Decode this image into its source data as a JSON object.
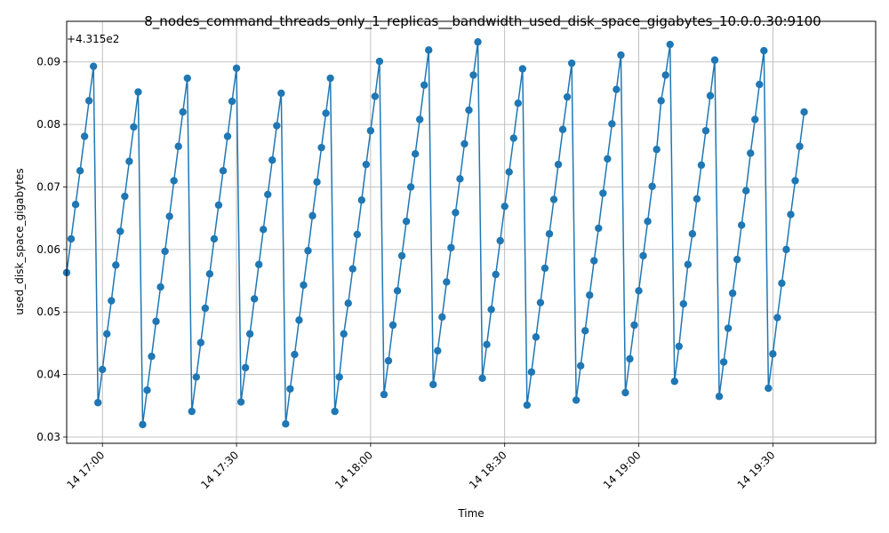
{
  "chart_data": {
    "type": "line",
    "title": "8_nodes_command_threads_only_1_replicas__bandwidth_used_disk_space_gigabytes_10.0.0.30:9100",
    "xlabel": "Time",
    "ylabel": "used_disk_space_gigabytes",
    "y_offset_label": "+4.315e2",
    "x_tick_labels": [
      "14 17:00",
      "14 17:30",
      "14 18:00",
      "14 18:30",
      "14 19:00",
      "14 19:30"
    ],
    "x_tick_minutes": [
      60,
      90,
      120,
      150,
      180,
      210
    ],
    "y_tick_labels": [
      "0.03",
      "0.04",
      "0.05",
      "0.06",
      "0.07",
      "0.08",
      "0.09"
    ],
    "y_tick_values": [
      0.03,
      0.04,
      0.05,
      0.06,
      0.07,
      0.08,
      0.09
    ],
    "xlim_minutes": [
      52,
      233
    ],
    "ylim_offset": [
      0.029,
      0.0965
    ],
    "grid": true,
    "line_color": "#1f77b4",
    "marker_color": "#1f77b4",
    "x_start_minute": 52,
    "x_step_minutes": 1,
    "values_offset": [
      0.0563,
      0.0617,
      0.0672,
      0.0726,
      0.0781,
      0.0838,
      0.0893,
      0.0355,
      0.0408,
      0.0465,
      0.0518,
      0.0575,
      0.0629,
      0.0685,
      0.0741,
      0.0796,
      0.0852,
      0.032,
      0.0375,
      0.0429,
      0.0485,
      0.054,
      0.0597,
      0.0653,
      0.071,
      0.0765,
      0.082,
      0.0874,
      0.0341,
      0.0396,
      0.0451,
      0.0506,
      0.0561,
      0.0617,
      0.0671,
      0.0726,
      0.0781,
      0.0837,
      0.089,
      0.0356,
      0.0411,
      0.0465,
      0.0521,
      0.0576,
      0.0632,
      0.0688,
      0.0743,
      0.0798,
      0.085,
      0.0321,
      0.0377,
      0.0432,
      0.0487,
      0.0543,
      0.0598,
      0.0654,
      0.0708,
      0.0763,
      0.0818,
      0.0874,
      0.0341,
      0.0396,
      0.0465,
      0.0514,
      0.0569,
      0.0624,
      0.0679,
      0.0736,
      0.079,
      0.0845,
      0.0901,
      0.0368,
      0.0422,
      0.0479,
      0.0534,
      0.059,
      0.0645,
      0.07,
      0.0753,
      0.0808,
      0.0863,
      0.0919,
      0.0384,
      0.0438,
      0.0492,
      0.0548,
      0.0603,
      0.0659,
      0.0713,
      0.0769,
      0.0823,
      0.0879,
      0.0932,
      0.0394,
      0.0448,
      0.0504,
      0.056,
      0.0614,
      0.0669,
      0.0724,
      0.0778,
      0.0834,
      0.0889,
      0.0351,
      0.0404,
      0.046,
      0.0515,
      0.057,
      0.0625,
      0.068,
      0.0736,
      0.0792,
      0.0844,
      0.0898,
      0.0359,
      0.0414,
      0.047,
      0.0527,
      0.0582,
      0.0634,
      0.069,
      0.0745,
      0.0801,
      0.0856,
      0.0911,
      0.0371,
      0.0425,
      0.0479,
      0.0534,
      0.059,
      0.0645,
      0.0701,
      0.076,
      0.0838,
      0.0879,
      0.0928,
      0.0389,
      0.0445,
      0.0513,
      0.0576,
      0.0625,
      0.0681,
      0.0735,
      0.079,
      0.0846,
      0.0903,
      0.0365,
      0.042,
      0.0474,
      0.053,
      0.0584,
      0.0639,
      0.0694,
      0.0754,
      0.0808,
      0.0864,
      0.0918,
      0.0378,
      0.0433,
      0.0491,
      0.0546,
      0.06,
      0.0656,
      0.071,
      0.0765,
      0.082
    ]
  }
}
